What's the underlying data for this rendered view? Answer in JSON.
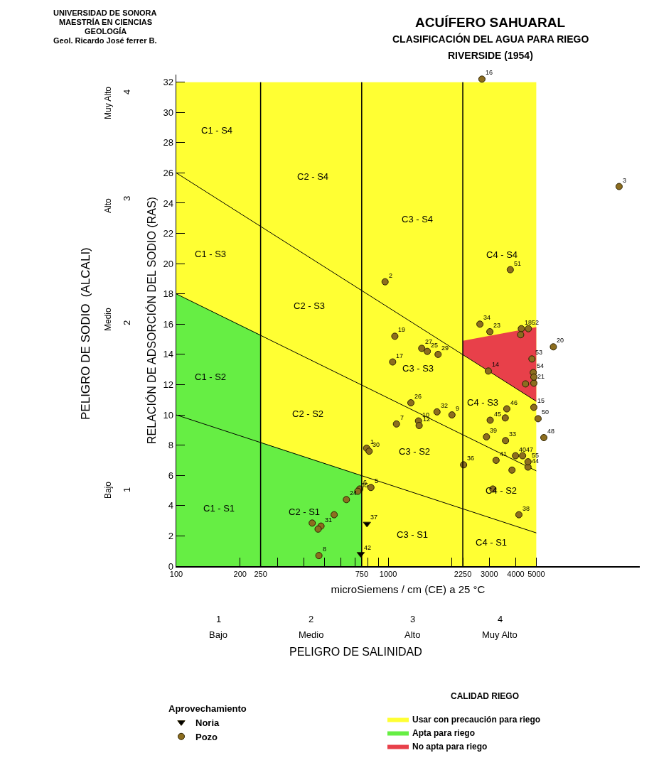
{
  "chart_data": {
    "type": "scatter",
    "title": "ACUÍFERO SAHUARAL",
    "subtitle": "CLASIFICACIÓN DEL AGUA PARA RIEGO",
    "xlabel": "microSiemens / cm (CE) a 25 °C",
    "ylabel": "RELACIÓN DE ADSORCIÓN DEL SODIO (RAS)",
    "legend_title": "Aprovechamiento",
    "log": "x",
    "xlim": [
      100,
      15400
    ],
    "ylim": [
      0,
      32.5
    ],
    "xticks": [
      100,
      200,
      250,
      {
        "value": 300,
        "label": null
      },
      {
        "value": 400,
        "label": null
      },
      {
        "value": 500,
        "label": null
      },
      {
        "value": 600,
        "label": null
      },
      {
        "value": 700,
        "label": null
      },
      750,
      {
        "value": 800,
        "label": null
      },
      {
        "value": 900,
        "label": null
      },
      1000,
      {
        "value": 2000,
        "label": null
      },
      2250,
      3000,
      4000,
      5000
    ],
    "yticks": [
      0,
      2,
      4,
      6,
      8,
      10,
      12,
      14,
      16,
      18,
      20,
      22,
      24,
      26,
      28,
      30,
      32
    ],
    "legend": "bottom",
    "ref_lines": [
      {
        "axis": "x",
        "value": 250,
        "color": "#000000"
      },
      {
        "axis": "x",
        "value": 750,
        "color": "#000000"
      },
      {
        "axis": "x",
        "value": 2250,
        "color": "#000000"
      }
    ],
    "series": [
      {
        "type": "area",
        "name": "Usar con precaución para riego",
        "color": "#ffff33",
        "x": [
          100,
          5000
        ],
        "values": [
          32,
          32
        ]
      },
      {
        "type": "area",
        "name": "Apta para riego",
        "color": "#66ee44",
        "x": [
          100,
          250,
          250,
          750,
          750
        ],
        "values": [
          18,
          15.3,
          8.2,
          6,
          0
        ]
      },
      {
        "type": "area",
        "name": "No apta para riego",
        "color": "#e8404a",
        "x": [
          2250,
          5000,
          5000,
          2250
        ],
        "values": [
          14.9,
          15.8,
          10.9,
          14
        ]
      },
      {
        "type": "line",
        "color": "#000000",
        "x": [
          100,
          5000
        ],
        "values": [
          10,
          2.2
        ]
      },
      {
        "type": "line",
        "color": "#000000",
        "x": [
          100,
          5000
        ],
        "values": [
          18,
          6.3
        ]
      },
      {
        "type": "line",
        "color": "#000000",
        "x": [
          100,
          5000
        ],
        "values": [
          26,
          10.9
        ]
      },
      {
        "name": "Noria",
        "marker": "triangle",
        "color": "#000000",
        "x": [
          794,
          742
        ],
        "values": [
          2.8,
          0.8
        ]
      },
      {
        "name": "Pozo",
        "marker": "circle",
        "color": "#8c6d1f",
        "x": [
          791,
          967,
          12300,
          829,
          734,
          1094,
          471,
          2000,
          1390,
          1400,
          2970,
          4870,
          2770,
          1050,
          4250,
          1075,
          6020,
          4870,
          3020,
          635,
          1530,
          1280,
          1440,
          1720,
          813,
          482,
          1700,
          3580,
          2710,
          719,
          2270,
          4140,
          2910,
          3990,
          3230,
          4570,
          3030,
          3630,
          4310,
          5430,
          5100,
          3770,
          4590,
          4770,
          4840,
          4570,
          556,
          438,
          467,
          4220,
          4870,
          4450,
          3570,
          3840,
          3120
        ],
        "values": [
          7.8,
          18.8,
          25.1,
          5.2,
          5.1,
          9.4,
          0.7,
          10,
          9.6,
          9.3,
          12.9,
          10.5,
          32.2,
          13.5,
          15.7,
          15.2,
          14.5,
          12.1,
          15.5,
          4.4,
          14.2,
          10.8,
          14.4,
          14,
          7.6,
          2.65,
          10.2,
          8.3,
          16,
          4.95,
          6.7,
          3.4,
          8.55,
          7.3,
          7,
          6.55,
          9.65,
          10.4,
          7.3,
          8.5,
          9.75,
          19.6,
          15.7,
          13.7,
          12.8,
          6.9,
          3.4,
          2.85,
          2.45,
          15.3,
          12.5,
          12.05,
          9.8,
          6.35,
          5.1
        ]
      }
    ],
    "annotations": [
      "UNIVERSIDAD DE SONORA",
      "MAESTRÍA EN CIENCIAS",
      "GEOLOGÍA",
      "Geol. Ricardo José ferrer B.",
      "RIVERSIDE (1954)",
      "PELIGRO DE SODIO  (ALCALI)",
      "Bajo",
      "1",
      "Medio",
      "2",
      "Alto",
      "3",
      "Muy Alto",
      "4",
      "1",
      "Bajo",
      "2",
      "Medio",
      "3",
      "Alto",
      "4",
      "Muy Alto",
      "PELIGRO DE SALINIDAD",
      "CALIDAD RIEGO",
      "C1 - S4",
      "C2 - S4",
      "C3 - S4",
      "C4 - S4",
      "C1 - S3",
      "C2 - S3",
      "C3 - S3",
      "C4 - S3",
      "C1 - S2",
      "C2 - S2",
      "C3 - S2",
      "C4 - S2",
      "C1 - S1",
      "C2 - S1",
      "C3 - S1",
      "C4 - S1",
      {
        "text": "37",
        "x": 794,
        "y": 2.8
      },
      {
        "text": "42",
        "x": 742,
        "y": 0.8
      },
      {
        "text": "1",
        "x": 791,
        "y": 7.8
      },
      {
        "text": "2",
        "x": 967,
        "y": 18.8
      },
      {
        "text": "3",
        "x": 12300,
        "y": 25.1
      },
      {
        "text": "5",
        "x": 829,
        "y": 5.2
      },
      {
        "text": "6",
        "x": 734,
        "y": 5.1
      },
      {
        "text": "7",
        "x": 1094,
        "y": 9.4
      },
      {
        "text": "8",
        "x": 471,
        "y": 0.7
      },
      {
        "text": "9",
        "x": 2000,
        "y": 10
      },
      {
        "text": "10",
        "x": 1390,
        "y": 9.6
      },
      {
        "text": "12",
        "x": 1400,
        "y": 9.3
      },
      {
        "text": "14",
        "x": 2970,
        "y": 12.9
      },
      {
        "text": "15",
        "x": 4870,
        "y": 10.5
      },
      {
        "text": "16",
        "x": 2770,
        "y": 32.2
      },
      {
        "text": "17",
        "x": 1050,
        "y": 13.5
      },
      {
        "text": "18",
        "x": 4250,
        "y": 15.7
      },
      {
        "text": "19",
        "x": 1075,
        "y": 15.2
      },
      {
        "text": "20",
        "x": 6020,
        "y": 14.5
      },
      {
        "text": "21",
        "x": 4870,
        "y": 12.1
      },
      {
        "text": "23",
        "x": 3020,
        "y": 15.5
      },
      {
        "text": "24",
        "x": 635,
        "y": 4.4
      },
      {
        "text": "25",
        "x": 1530,
        "y": 14.2
      },
      {
        "text": "26",
        "x": 1280,
        "y": 10.8
      },
      {
        "text": "27",
        "x": 1440,
        "y": 14.4
      },
      {
        "text": "29",
        "x": 1720,
        "y": 14
      },
      {
        "text": "30",
        "x": 813,
        "y": 7.6
      },
      {
        "text": "31",
        "x": 482,
        "y": 2.65
      },
      {
        "text": "32",
        "x": 1700,
        "y": 10.2
      },
      {
        "text": "33",
        "x": 3580,
        "y": 8.3
      },
      {
        "text": "34",
        "x": 2710,
        "y": 16
      },
      {
        "text": "35",
        "x": 719,
        "y": 4.95
      },
      {
        "text": "36",
        "x": 2270,
        "y": 6.7
      },
      {
        "text": "38",
        "x": 4140,
        "y": 3.4
      },
      {
        "text": "39",
        "x": 2910,
        "y": 8.55
      },
      {
        "text": "40",
        "x": 3990,
        "y": 7.3
      },
      {
        "text": "41",
        "x": 3230,
        "y": 7
      },
      {
        "text": "44",
        "x": 4570,
        "y": 6.55
      },
      {
        "text": "45",
        "x": 3030,
        "y": 9.65
      },
      {
        "text": "46",
        "x": 3630,
        "y": 10.4
      },
      {
        "text": "47",
        "x": 4310,
        "y": 7.3
      },
      {
        "text": "48",
        "x": 5430,
        "y": 8.5
      },
      {
        "text": "50",
        "x": 5100,
        "y": 9.75
      },
      {
        "text": "51",
        "x": 3770,
        "y": 19.6
      },
      {
        "text": "52",
        "x": 4590,
        "y": 15.7
      },
      {
        "text": "53",
        "x": 4770,
        "y": 13.7
      },
      {
        "text": "54",
        "x": 4840,
        "y": 12.8
      },
      {
        "text": "55",
        "x": 4570,
        "y": 6.9
      }
    ]
  }
}
